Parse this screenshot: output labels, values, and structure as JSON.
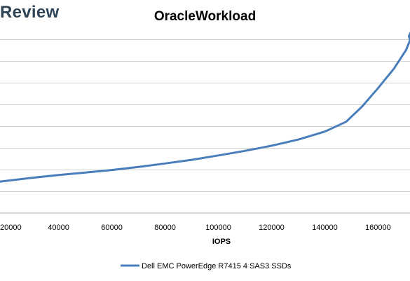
{
  "watermark": "Review",
  "chart_data": {
    "type": "line",
    "title": "OracleWorkload",
    "xlabel": "IOPS",
    "ylabel": "",
    "x_ticks": [
      "20000",
      "40000",
      "60000",
      "80000",
      "100000",
      "120000",
      "140000",
      "160000"
    ],
    "xlim": [
      18000,
      172000
    ],
    "ylim": [
      0,
      9
    ],
    "y_gridlines": [
      1,
      2,
      3,
      4,
      5,
      6,
      7,
      8
    ],
    "grid": true,
    "legend_position": "bottom",
    "series": [
      {
        "name": "Dell EMC PowerEdge R7415 4 SAS3 SSDs",
        "color": "#4a7ebb",
        "points": [
          [
            18000,
            1.45
          ],
          [
            30000,
            1.62
          ],
          [
            40000,
            1.75
          ],
          [
            50000,
            1.86
          ],
          [
            60000,
            1.98
          ],
          [
            70000,
            2.12
          ],
          [
            80000,
            2.28
          ],
          [
            90000,
            2.45
          ],
          [
            100000,
            2.65
          ],
          [
            110000,
            2.86
          ],
          [
            120000,
            3.1
          ],
          [
            130000,
            3.38
          ],
          [
            140000,
            3.75
          ],
          [
            148000,
            4.2
          ],
          [
            154000,
            4.9
          ],
          [
            160000,
            5.75
          ],
          [
            166000,
            6.65
          ],
          [
            170500,
            7.5
          ],
          [
            172000,
            7.95
          ],
          [
            171600,
            8.15
          ],
          [
            172200,
            8.3
          ]
        ]
      }
    ]
  }
}
